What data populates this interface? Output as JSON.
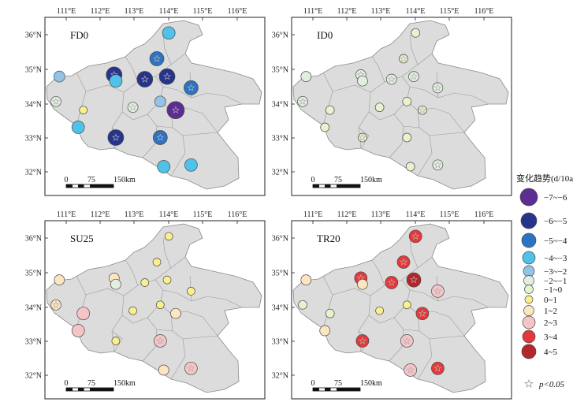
{
  "lon_ticks": [
    "111°E",
    "112°E",
    "113°E",
    "114°E",
    "115°E",
    "116°E"
  ],
  "lat_ticks": [
    "36°N",
    "35°N",
    "34°N",
    "33°N",
    "32°N"
  ],
  "scale_labels": [
    "0",
    "75",
    "150km"
  ],
  "legend": {
    "title": "变化趋势(d/10a)",
    "classes": [
      {
        "label": "−7~−6",
        "color": "#5c2e91"
      },
      {
        "label": "−6~−5",
        "color": "#27348b"
      },
      {
        "label": "−5~−4",
        "color": "#2c73c2"
      },
      {
        "label": "−4~−3",
        "color": "#50c1e9"
      },
      {
        "label": "−3~−2",
        "color": "#93c4e8"
      },
      {
        "label": "−2~−1",
        "color": "#e2efe0"
      },
      {
        "label": "−1~0",
        "color": "#e7f3cf"
      },
      {
        "label": "0~1",
        "color": "#f9f08c"
      },
      {
        "label": "1~2",
        "color": "#fbe6c0"
      },
      {
        "label": "2~3",
        "color": "#f4c4c7"
      },
      {
        "label": "3~4",
        "color": "#e5383b"
      },
      {
        "label": "4~5",
        "color": "#b5252b"
      }
    ],
    "sig_label": "p<0.05"
  },
  "panels": [
    {
      "name": "FD0",
      "stations": [
        {
          "lon": 114.0,
          "lat": 36.05,
          "cls": 3,
          "sig": false
        },
        {
          "lon": 110.8,
          "lat": 34.78,
          "cls": 4,
          "sig": false
        },
        {
          "lon": 112.4,
          "lat": 34.83,
          "cls": 1,
          "sig": true
        },
        {
          "lon": 112.45,
          "lat": 34.65,
          "cls": 3,
          "sig": false
        },
        {
          "lon": 113.65,
          "lat": 35.3,
          "cls": 2,
          "sig": true
        },
        {
          "lon": 113.3,
          "lat": 34.7,
          "cls": 1,
          "sig": true
        },
        {
          "lon": 113.95,
          "lat": 34.78,
          "cls": 1,
          "sig": true
        },
        {
          "lon": 114.65,
          "lat": 34.45,
          "cls": 2,
          "sig": true
        },
        {
          "lon": 110.7,
          "lat": 34.05,
          "cls": 5,
          "sig": true
        },
        {
          "lon": 111.5,
          "lat": 33.8,
          "cls": 7,
          "sig": false
        },
        {
          "lon": 112.95,
          "lat": 33.88,
          "cls": 5,
          "sig": true
        },
        {
          "lon": 113.75,
          "lat": 34.05,
          "cls": 4,
          "sig": false
        },
        {
          "lon": 114.2,
          "lat": 33.8,
          "cls": 0,
          "sig": true
        },
        {
          "lon": 111.35,
          "lat": 33.3,
          "cls": 3,
          "sig": false
        },
        {
          "lon": 112.45,
          "lat": 33.0,
          "cls": 1,
          "sig": true
        },
        {
          "lon": 113.75,
          "lat": 33.0,
          "cls": 2,
          "sig": true
        },
        {
          "lon": 113.85,
          "lat": 32.15,
          "cls": 3,
          "sig": false
        },
        {
          "lon": 114.65,
          "lat": 32.2,
          "cls": 3,
          "sig": false
        }
      ]
    },
    {
      "name": "ID0",
      "stations": [
        {
          "lon": 114.0,
          "lat": 36.05,
          "cls": 6,
          "sig": false
        },
        {
          "lon": 110.8,
          "lat": 34.78,
          "cls": 5,
          "sig": false
        },
        {
          "lon": 112.4,
          "lat": 34.83,
          "cls": 5,
          "sig": true
        },
        {
          "lon": 112.45,
          "lat": 34.65,
          "cls": 5,
          "sig": false
        },
        {
          "lon": 113.65,
          "lat": 35.3,
          "cls": 6,
          "sig": true
        },
        {
          "lon": 113.3,
          "lat": 34.7,
          "cls": 5,
          "sig": true
        },
        {
          "lon": 113.95,
          "lat": 34.78,
          "cls": 5,
          "sig": true
        },
        {
          "lon": 114.65,
          "lat": 34.45,
          "cls": 5,
          "sig": true
        },
        {
          "lon": 110.7,
          "lat": 34.05,
          "cls": 5,
          "sig": true
        },
        {
          "lon": 111.5,
          "lat": 33.8,
          "cls": 6,
          "sig": false
        },
        {
          "lon": 112.95,
          "lat": 33.88,
          "cls": 6,
          "sig": false
        },
        {
          "lon": 113.75,
          "lat": 34.05,
          "cls": 6,
          "sig": false
        },
        {
          "lon": 114.2,
          "lat": 33.8,
          "cls": 6,
          "sig": true
        },
        {
          "lon": 111.35,
          "lat": 33.3,
          "cls": 6,
          "sig": false
        },
        {
          "lon": 112.45,
          "lat": 33.0,
          "cls": 6,
          "sig": true
        },
        {
          "lon": 113.75,
          "lat": 33.0,
          "cls": 6,
          "sig": false
        },
        {
          "lon": 113.85,
          "lat": 32.15,
          "cls": 6,
          "sig": false
        },
        {
          "lon": 114.65,
          "lat": 32.2,
          "cls": 5,
          "sig": true
        }
      ]
    },
    {
      "name": "SU25",
      "stations": [
        {
          "lon": 114.0,
          "lat": 36.05,
          "cls": 7,
          "sig": false
        },
        {
          "lon": 110.8,
          "lat": 34.78,
          "cls": 8,
          "sig": false
        },
        {
          "lon": 112.4,
          "lat": 34.83,
          "cls": 8,
          "sig": false
        },
        {
          "lon": 112.45,
          "lat": 34.65,
          "cls": 5,
          "sig": false
        },
        {
          "lon": 113.65,
          "lat": 35.3,
          "cls": 7,
          "sig": false
        },
        {
          "lon": 113.3,
          "lat": 34.7,
          "cls": 7,
          "sig": false
        },
        {
          "lon": 113.95,
          "lat": 34.78,
          "cls": 7,
          "sig": false
        },
        {
          "lon": 114.65,
          "lat": 34.45,
          "cls": 7,
          "sig": false
        },
        {
          "lon": 110.7,
          "lat": 34.05,
          "cls": 8,
          "sig": true
        },
        {
          "lon": 111.5,
          "lat": 33.8,
          "cls": 9,
          "sig": false
        },
        {
          "lon": 112.95,
          "lat": 33.88,
          "cls": 7,
          "sig": false
        },
        {
          "lon": 113.75,
          "lat": 34.05,
          "cls": 7,
          "sig": false
        },
        {
          "lon": 114.2,
          "lat": 33.8,
          "cls": 8,
          "sig": false
        },
        {
          "lon": 111.35,
          "lat": 33.3,
          "cls": 9,
          "sig": false
        },
        {
          "lon": 112.45,
          "lat": 33.0,
          "cls": 7,
          "sig": false
        },
        {
          "lon": 113.75,
          "lat": 33.0,
          "cls": 9,
          "sig": true
        },
        {
          "lon": 113.85,
          "lat": 32.15,
          "cls": 8,
          "sig": false
        },
        {
          "lon": 114.65,
          "lat": 32.2,
          "cls": 9,
          "sig": true
        }
      ]
    },
    {
      "name": "TR20",
      "stations": [
        {
          "lon": 114.0,
          "lat": 36.05,
          "cls": 10,
          "sig": true
        },
        {
          "lon": 110.8,
          "lat": 34.78,
          "cls": 8,
          "sig": false
        },
        {
          "lon": 112.4,
          "lat": 34.83,
          "cls": 10,
          "sig": true
        },
        {
          "lon": 112.45,
          "lat": 34.65,
          "cls": 8,
          "sig": false
        },
        {
          "lon": 113.65,
          "lat": 35.3,
          "cls": 10,
          "sig": true
        },
        {
          "lon": 113.3,
          "lat": 34.7,
          "cls": 10,
          "sig": true
        },
        {
          "lon": 113.95,
          "lat": 34.78,
          "cls": 11,
          "sig": true
        },
        {
          "lon": 114.65,
          "lat": 34.45,
          "cls": 9,
          "sig": true
        },
        {
          "lon": 110.7,
          "lat": 34.05,
          "cls": 6,
          "sig": false
        },
        {
          "lon": 111.5,
          "lat": 33.8,
          "cls": 6,
          "sig": false
        },
        {
          "lon": 112.95,
          "lat": 33.88,
          "cls": 7,
          "sig": false
        },
        {
          "lon": 113.75,
          "lat": 34.05,
          "cls": 7,
          "sig": false
        },
        {
          "lon": 114.2,
          "lat": 33.8,
          "cls": 10,
          "sig": true
        },
        {
          "lon": 111.35,
          "lat": 33.3,
          "cls": 8,
          "sig": false
        },
        {
          "lon": 112.45,
          "lat": 33.0,
          "cls": 10,
          "sig": true
        },
        {
          "lon": 113.75,
          "lat": 33.0,
          "cls": 9,
          "sig": true
        },
        {
          "lon": 113.85,
          "lat": 32.15,
          "cls": 9,
          "sig": true
        },
        {
          "lon": 114.65,
          "lat": 32.2,
          "cls": 10,
          "sig": true
        }
      ]
    }
  ]
}
